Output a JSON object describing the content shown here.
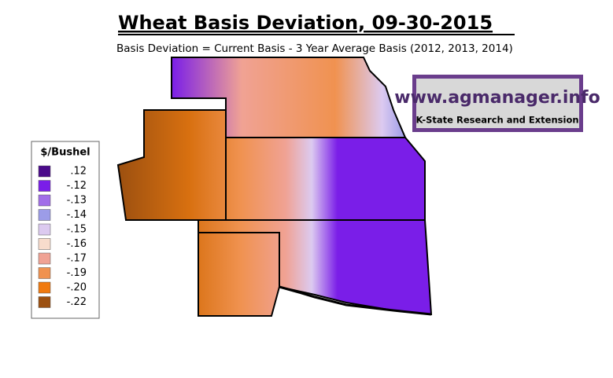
{
  "title": "Wheat Basis Deviation, 09-30-2015",
  "subtitle": "Basis Deviation = Current Basis - 3 Year Average Basis (2012, 2013, 2014)",
  "logo": {
    "url": "www.agmanager.info",
    "org": "K-State Research and Extension"
  },
  "legend": {
    "title": "$/Bushel",
    "items": [
      {
        "label": ".12",
        "color": "#4a0a8a"
      },
      {
        "label": "-.12",
        "color": "#7a1ee8"
      },
      {
        "label": "-.13",
        "color": "#a16ee8"
      },
      {
        "label": "-.14",
        "color": "#9c9ce8"
      },
      {
        "label": "-.15",
        "color": "#dccaf0"
      },
      {
        "label": "-.16",
        "color": "#f8dccc"
      },
      {
        "label": "-.17",
        "color": "#f0a294"
      },
      {
        "label": "-.19",
        "color": "#f09250"
      },
      {
        "label": "-.20",
        "color": "#f07a10"
      },
      {
        "label": "-.22",
        "color": "#9c5010"
      }
    ]
  }
}
